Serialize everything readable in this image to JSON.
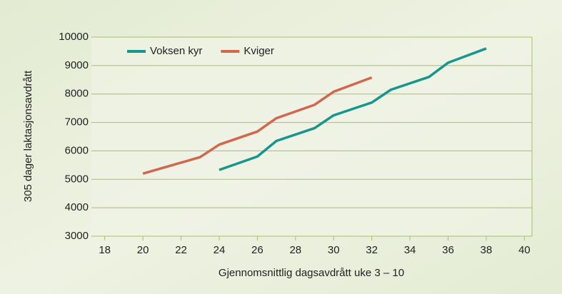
{
  "chart_data": {
    "type": "line",
    "xlabel": "Gjennomsnittlig dagsavdrått uke 3 – 10",
    "ylabel": "305 dager laktasjonsavdrått",
    "series": [
      {
        "name": "Voksen kyr",
        "color": "#17958f",
        "x": [
          24,
          26,
          27,
          29,
          30,
          32,
          33,
          35,
          36,
          38
        ],
        "values": [
          5330,
          5800,
          6350,
          6800,
          7250,
          7700,
          8150,
          8600,
          9100,
          9600
        ]
      },
      {
        "name": "Kviger",
        "color": "#d0684e",
        "x": [
          20,
          23,
          24,
          26,
          27,
          29,
          30,
          32
        ],
        "values": [
          5200,
          5780,
          6220,
          6680,
          7150,
          7620,
          8080,
          8580
        ]
      }
    ],
    "xlim": [
      17.3,
      40.4
    ],
    "xticks": [
      18,
      20,
      22,
      24,
      26,
      28,
      30,
      32,
      34,
      36,
      38,
      40
    ],
    "ylim": [
      3000,
      10000
    ],
    "yticks": [
      3000,
      4000,
      5000,
      6000,
      7000,
      8000,
      9000,
      10000
    ],
    "grid": true,
    "legend": "top-left"
  }
}
